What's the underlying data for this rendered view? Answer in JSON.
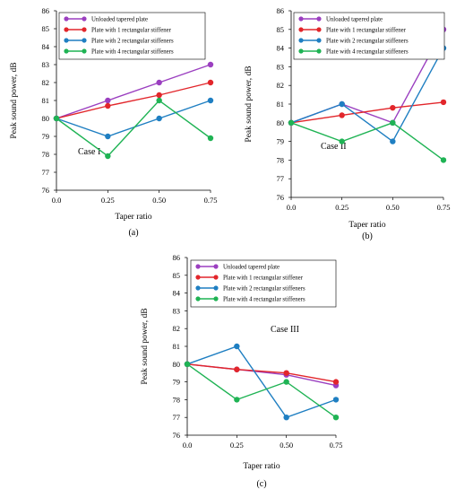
{
  "figure": {
    "colors": {
      "unloaded": "#9b3fc0",
      "one": "#e2262b",
      "two": "#1f7fc2",
      "four": "#1fb354",
      "axis": "#000000"
    }
  },
  "chart_data": [
    {
      "type": "line",
      "caption": "(a)",
      "annotation": "Case I",
      "xlabel": "Taper ratio",
      "ylabel": "Peak sound power, dB",
      "x": [
        0.0,
        0.25,
        0.5,
        0.75
      ],
      "xtick_labels": [
        "0.0",
        "0.25",
        "0.50",
        "0.75"
      ],
      "ylim": [
        76,
        86
      ],
      "yticks": [
        76,
        77,
        78,
        79,
        80,
        81,
        82,
        83,
        84,
        85,
        86
      ],
      "legend_position": "top-left",
      "series": [
        {
          "name": "Unloaded tapered plate",
          "color": "#9b3fc0",
          "values": [
            80,
            81,
            82,
            83
          ]
        },
        {
          "name": "Plate with 1 rectangular stiffener",
          "color": "#e2262b",
          "values": [
            80,
            80.7,
            81.3,
            82
          ]
        },
        {
          "name": "Plate with 2 rectangular stiffeners",
          "color": "#1f7fc2",
          "values": [
            80,
            79,
            80,
            81
          ]
        },
        {
          "name": "Plate with 4 rectangular stiffeners",
          "color": "#1fb354",
          "values": [
            80,
            77.9,
            81,
            78.9
          ]
        }
      ]
    },
    {
      "type": "line",
      "caption": "(b)",
      "annotation": "Case II",
      "xlabel": "Taper ratio",
      "ylabel": "Peak sound power, dB",
      "x": [
        0.0,
        0.25,
        0.5,
        0.75
      ],
      "xtick_labels": [
        "0.0",
        "0.25",
        "0.50",
        "0.75"
      ],
      "ylim": [
        76,
        86
      ],
      "yticks": [
        76,
        77,
        78,
        79,
        80,
        81,
        82,
        83,
        84,
        85,
        86
      ],
      "legend_position": "top-left",
      "series": [
        {
          "name": "Unloaded tapered plate",
          "color": "#9b3fc0",
          "values": [
            80,
            81,
            80,
            85
          ]
        },
        {
          "name": "Plate with 1 rectangular stiffener",
          "color": "#e2262b",
          "values": [
            80,
            80.4,
            80.8,
            81.1
          ]
        },
        {
          "name": "Plate with 2 rectangular stiffeners",
          "color": "#1f7fc2",
          "values": [
            80,
            81,
            79,
            84
          ]
        },
        {
          "name": "Plate with 4 rectangular stiffeners",
          "color": "#1fb354",
          "values": [
            80,
            79,
            80,
            78
          ]
        }
      ]
    },
    {
      "type": "line",
      "caption": "(c)",
      "annotation": "Case III",
      "xlabel": "Taper ratio",
      "ylabel": "Peak sound power, dB",
      "x": [
        0.0,
        0.25,
        0.5,
        0.75
      ],
      "xtick_labels": [
        "0.0",
        "0.25",
        "0.50",
        "0.75"
      ],
      "ylim": [
        76,
        86
      ],
      "yticks": [
        76,
        77,
        78,
        79,
        80,
        81,
        82,
        83,
        84,
        85,
        86
      ],
      "legend_position": "top-left",
      "series": [
        {
          "name": "Unloaded tapered plate",
          "color": "#9b3fc0",
          "values": [
            80,
            79.7,
            79.4,
            78.8
          ]
        },
        {
          "name": "Plate with 1 rectangular stiffener",
          "color": "#e2262b",
          "values": [
            80,
            79.7,
            79.5,
            79
          ]
        },
        {
          "name": "Plate with 2 rectangular stiffeners",
          "color": "#1f7fc2",
          "values": [
            80,
            81,
            77,
            78
          ]
        },
        {
          "name": "Plate with 4 rectangular stiffeners",
          "color": "#1fb354",
          "values": [
            80,
            78,
            79,
            77
          ]
        }
      ]
    }
  ]
}
